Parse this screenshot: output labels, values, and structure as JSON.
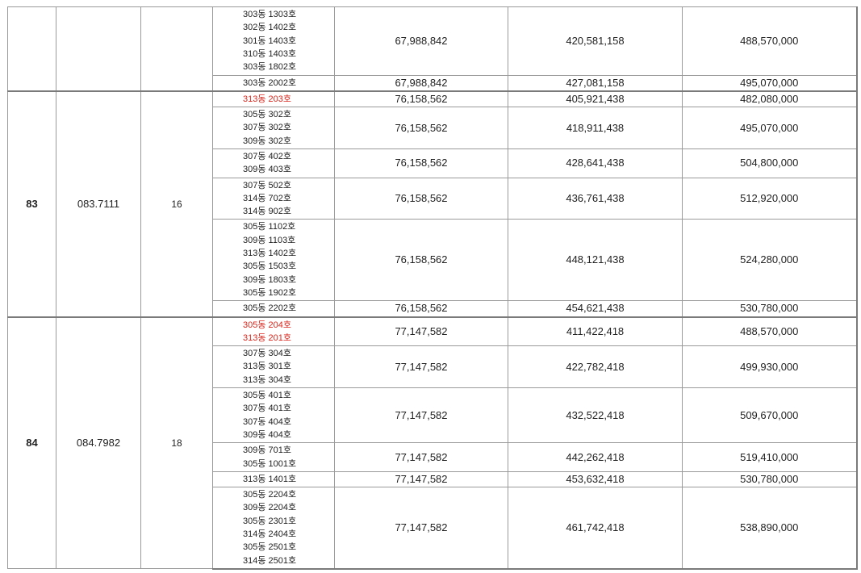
{
  "groups": [
    {
      "type": "",
      "area": "",
      "count": "",
      "rows": [
        {
          "units": [
            "303동 1303호",
            "302동 1402호",
            "301동 1403호",
            "310동 1403호",
            "303동 1802호"
          ],
          "red": false,
          "c1": "67,988,842",
          "c2": "420,581,158",
          "c3": "488,570,000"
        },
        {
          "units": [
            "303동 2002호"
          ],
          "red": false,
          "c1": "67,988,842",
          "c2": "427,081,158",
          "c3": "495,070,000"
        }
      ]
    },
    {
      "type": "83",
      "area": "083.7111",
      "count": "16",
      "rows": [
        {
          "units": [
            "313동 203호"
          ],
          "red": true,
          "c1": "76,158,562",
          "c2": "405,921,438",
          "c3": "482,080,000"
        },
        {
          "units": [
            "305동 302호",
            "307동 302호",
            "309동 302호"
          ],
          "red": false,
          "c1": "76,158,562",
          "c2": "418,911,438",
          "c3": "495,070,000"
        },
        {
          "units": [
            "307동 402호",
            "309동 403호"
          ],
          "red": false,
          "c1": "76,158,562",
          "c2": "428,641,438",
          "c3": "504,800,000"
        },
        {
          "units": [
            "307동 502호",
            "314동 702호",
            "314동 902호"
          ],
          "red": false,
          "c1": "76,158,562",
          "c2": "436,761,438",
          "c3": "512,920,000"
        },
        {
          "units": [
            "305동 1102호",
            "309동 1103호",
            "313동 1402호",
            "305동 1503호",
            "309동 1803호",
            "305동 1902호"
          ],
          "red": false,
          "c1": "76,158,562",
          "c2": "448,121,438",
          "c3": "524,280,000"
        },
        {
          "units": [
            "305동 2202호"
          ],
          "red": false,
          "c1": "76,158,562",
          "c2": "454,621,438",
          "c3": "530,780,000"
        }
      ]
    },
    {
      "type": "84",
      "area": "084.7982",
      "count": "18",
      "rows": [
        {
          "units": [
            "305동 204호",
            "313동 201호"
          ],
          "red": true,
          "c1": "77,147,582",
          "c2": "411,422,418",
          "c3": "488,570,000"
        },
        {
          "units": [
            "307동 304호",
            "313동 301호",
            "313동 304호"
          ],
          "red": false,
          "c1": "77,147,582",
          "c2": "422,782,418",
          "c3": "499,930,000"
        },
        {
          "units": [
            "305동 401호",
            "307동 401호",
            "307동 404호",
            "309동 404호"
          ],
          "red": false,
          "c1": "77,147,582",
          "c2": "432,522,418",
          "c3": "509,670,000"
        },
        {
          "units": [
            "309동 701호",
            "305동 1001호"
          ],
          "red": false,
          "c1": "77,147,582",
          "c2": "442,262,418",
          "c3": "519,410,000"
        },
        {
          "units": [
            "313동 1401호"
          ],
          "red": false,
          "c1": "77,147,582",
          "c2": "453,632,418",
          "c3": "530,780,000"
        },
        {
          "units": [
            "305동 2204호",
            "309동 2204호",
            "305동 2301호",
            "314동 2404호",
            "305동 2501호",
            "314동 2501호"
          ],
          "red": false,
          "c1": "77,147,582",
          "c2": "461,742,418",
          "c3": "538,890,000"
        }
      ]
    }
  ]
}
